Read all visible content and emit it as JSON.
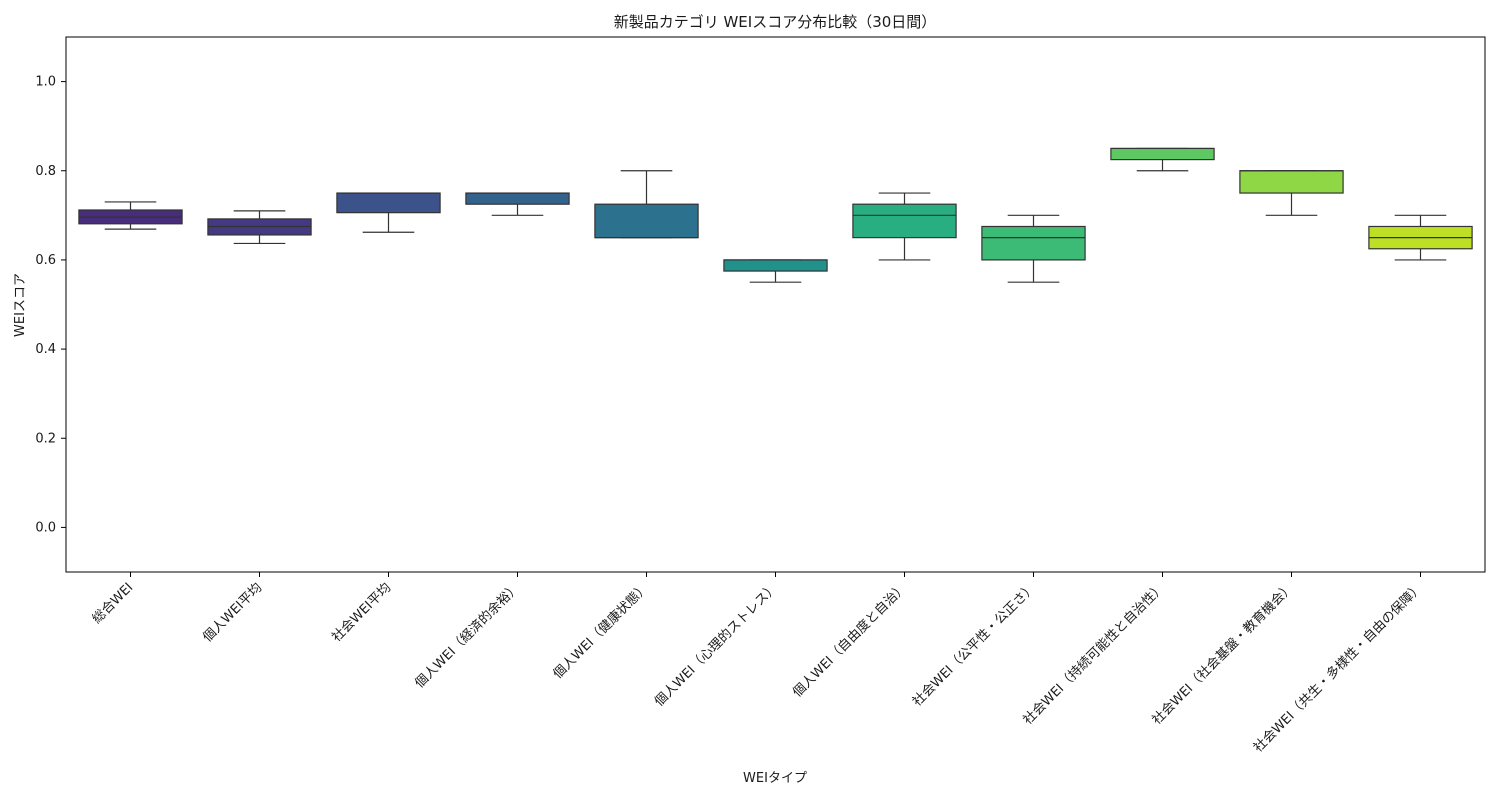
{
  "chart_data": {
    "type": "box",
    "title": "新製品カテゴリ WEIスコア分布比較（30日間）",
    "xlabel": "WEIタイプ",
    "ylabel": "WEIスコア",
    "ylim": [
      -0.1,
      1.1
    ],
    "yticks": [
      0.0,
      0.2,
      0.4,
      0.6,
      0.8,
      1.0
    ],
    "ytick_labels": [
      "0.0",
      "0.2",
      "0.4",
      "0.6",
      "0.8",
      "1.0"
    ],
    "grid": false,
    "categories": [
      "総合WEI",
      "個人WEI平均",
      "社会WEI平均",
      "個人WEI（経済的余裕）",
      "個人WEI（健康状態）",
      "個人WEI（心理的ストレス）",
      "個人WEI（自由度と自治）",
      "社会WEI（公平性・公正さ）",
      "社会WEI（持続可能性と自治性）",
      "社会WEI（社会基盤・教育機会）",
      "社会WEI（共生・多様性・自由の保障）"
    ],
    "boxes": [
      {
        "whisker_low": 0.669,
        "q1": 0.681,
        "median": 0.696,
        "q3": 0.712,
        "whisker_high": 0.73,
        "color": "#472d7b"
      },
      {
        "whisker_low": 0.637,
        "q1": 0.656,
        "median": 0.675,
        "q3": 0.692,
        "whisker_high": 0.71,
        "color": "#443a83"
      },
      {
        "whisker_low": 0.662,
        "q1": 0.706,
        "median": 0.75,
        "q3": 0.75,
        "whisker_high": 0.75,
        "color": "#3b528b"
      },
      {
        "whisker_low": 0.7,
        "q1": 0.725,
        "median": 0.75,
        "q3": 0.75,
        "whisker_high": 0.75,
        "color": "#33638d"
      },
      {
        "whisker_low": 0.65,
        "q1": 0.65,
        "median": 0.65,
        "q3": 0.725,
        "whisker_high": 0.8,
        "color": "#2c728e"
      },
      {
        "whisker_low": 0.55,
        "q1": 0.575,
        "median": 0.6,
        "q3": 0.6,
        "whisker_high": 0.6,
        "color": "#21918c"
      },
      {
        "whisker_low": 0.6,
        "q1": 0.65,
        "median": 0.7,
        "q3": 0.725,
        "whisker_high": 0.75,
        "color": "#28ae80"
      },
      {
        "whisker_low": 0.55,
        "q1": 0.6,
        "median": 0.65,
        "q3": 0.675,
        "whisker_high": 0.7,
        "color": "#3bbb75"
      },
      {
        "whisker_low": 0.8,
        "q1": 0.825,
        "median": 0.85,
        "q3": 0.85,
        "whisker_high": 0.85,
        "color": "#5ec962"
      },
      {
        "whisker_low": 0.7,
        "q1": 0.75,
        "median": 0.8,
        "q3": 0.8,
        "whisker_high": 0.8,
        "color": "#8fd744"
      },
      {
        "whisker_low": 0.6,
        "q1": 0.625,
        "median": 0.65,
        "q3": 0.675,
        "whisker_high": 0.7,
        "color": "#bddf26"
      }
    ]
  }
}
